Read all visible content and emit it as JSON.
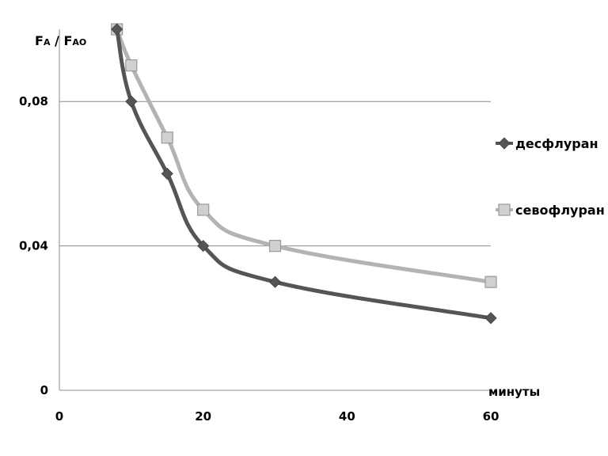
{
  "chart_data": {
    "type": "line",
    "ylabel": "FA / FAO",
    "xlabel": "минуты",
    "xlim": [
      0,
      60
    ],
    "ylim": [
      0,
      0.1
    ],
    "x_ticks": [
      {
        "value": 0,
        "label": "0"
      },
      {
        "value": 20,
        "label": "20"
      },
      {
        "value": 40,
        "label": "40"
      },
      {
        "value": 60,
        "label": "60"
      }
    ],
    "y_ticks": [
      {
        "value": 0,
        "label": "0"
      },
      {
        "value": 0.04,
        "label": "0,04"
      },
      {
        "value": 0.08,
        "label": "0,08"
      }
    ],
    "grid": true,
    "legend_position": "right",
    "series": [
      {
        "name": "десфлуран",
        "color": "#555555",
        "marker": "diamond",
        "points": [
          [
            8,
            0.1
          ],
          [
            10,
            0.08
          ],
          [
            15,
            0.06
          ],
          [
            20,
            0.04
          ],
          [
            30,
            0.03
          ],
          [
            60,
            0.02
          ]
        ]
      },
      {
        "name": "севофлуран",
        "color": "#b3b3b3",
        "marker": "square",
        "points": [
          [
            8,
            0.1
          ],
          [
            10,
            0.09
          ],
          [
            15,
            0.07
          ],
          [
            20,
            0.05
          ],
          [
            30,
            0.04
          ],
          [
            60,
            0.03
          ]
        ]
      }
    ]
  }
}
